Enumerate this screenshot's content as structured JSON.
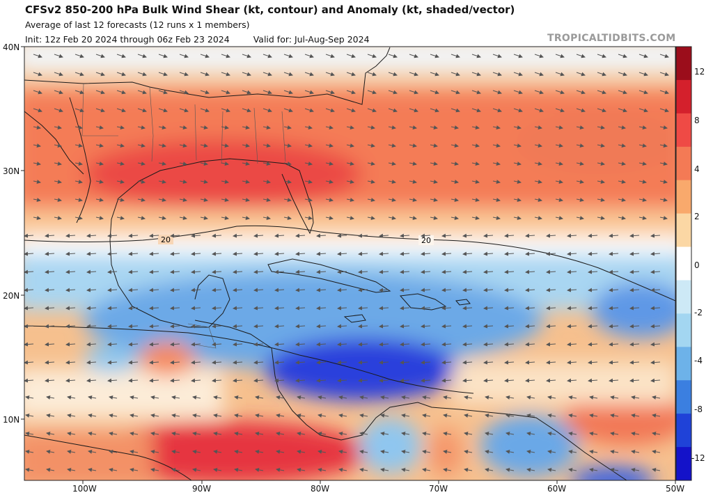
{
  "header": {
    "title": "CFSv2 850-200 hPa Bulk Wind Shear (kt, contour) and Anomaly (kt, shaded/vector)",
    "subtitle": "Average of last 12 forecasts (12 runs x 1 members)",
    "init": "Init: 12z Feb 20 2024 through 06z Feb 23 2024",
    "valid": "Valid for: Jul-Aug-Sep 2024",
    "watermark": "TROPICALTIDBITS.COM"
  },
  "map": {
    "lat_labels": [
      "40N",
      "30N",
      "20N",
      "10N"
    ],
    "lon_labels": [
      "100W",
      "90W",
      "80W",
      "70W",
      "60W",
      "50W"
    ],
    "contour_labels": [
      "20",
      "20"
    ]
  },
  "colorbar": {
    "labels": [
      "12",
      "8",
      "4",
      "2",
      "0",
      "-2",
      "-4",
      "-8",
      "-12"
    ],
    "colors": [
      "#9b0d1b",
      "#d4202c",
      "#ef4a45",
      "#f47a55",
      "#f9a96c",
      "#fbd7a4",
      "#ffffff",
      "#cde9f6",
      "#a3d6f1",
      "#6db2e9",
      "#3b7fe0",
      "#1f42d8",
      "#1412c9"
    ]
  },
  "palette": {
    "ocean_red": "#ef5a48",
    "ocean_orange": "#f3865d",
    "ocean_tan": "#f9c793",
    "ocean_blue": "#5c93e6",
    "ocean_darkblue": "#2a3fdd",
    "light_blue": "#bde0f5"
  }
}
